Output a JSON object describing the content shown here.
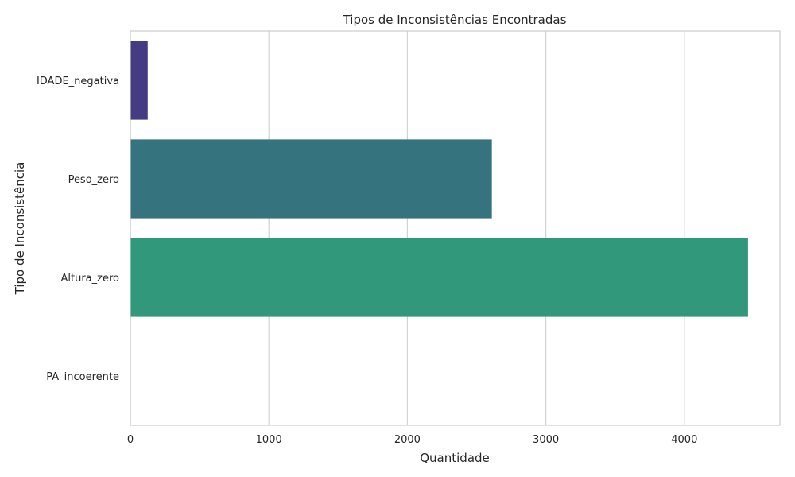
{
  "chart_data": {
    "type": "bar",
    "orientation": "horizontal",
    "title": "Tipos de Inconsistências Encontradas",
    "xlabel": "Quantidade",
    "ylabel": "Tipo de Inconsistência",
    "categories": [
      "IDADE_negativa",
      "Peso_zero",
      "Altura_zero",
      "PA_incoerente"
    ],
    "values": [
      125,
      2610,
      4460,
      0
    ],
    "xlim": [
      0,
      4690
    ],
    "xticks": [
      0,
      1000,
      2000,
      3000,
      4000
    ],
    "xtick_labels": [
      "0",
      "1000",
      "2000",
      "3000",
      "4000"
    ],
    "grid": "vertical",
    "legend": "none",
    "colors": [
      "#443b83",
      "#35737f",
      "#32987c",
      "#4fc16b"
    ],
    "grid_color": "#d3d3d3",
    "spine_color": "#cccccc"
  }
}
